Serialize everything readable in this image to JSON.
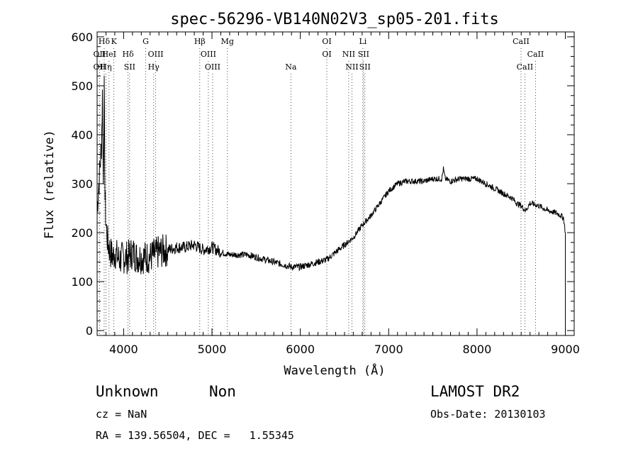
{
  "chart_data": {
    "type": "line",
    "title": "spec-56296-VB140N02V3_sp05-201.fits",
    "xlabel": "Wavelength (Å)",
    "ylabel": "Flux (relative)",
    "xlim": [
      3700,
      9100
    ],
    "ylim": [
      -10,
      610
    ],
    "xticks": [
      4000,
      5000,
      6000,
      7000,
      8000,
      9000
    ],
    "yticks": [
      0,
      100,
      200,
      300,
      400,
      500,
      600
    ],
    "grid": false,
    "legend": "none",
    "series": [
      {
        "x": [
          3700,
          3750,
          3760,
          3770,
          3780,
          3790,
          3800,
          3820,
          3850,
          3880,
          3900,
          3950,
          4000,
          4050,
          4100,
          4150,
          4200,
          4250,
          4300,
          4350,
          4400,
          4500,
          4600,
          4700,
          4800,
          4900,
          5000,
          5100,
          5200,
          5300,
          5400,
          5500,
          5600,
          5700,
          5800,
          5900,
          6000,
          6100,
          6200,
          6300,
          6400,
          6500,
          6600,
          6700,
          6800,
          6900,
          7000,
          7100,
          7200,
          7300,
          7400,
          7500,
          7600,
          7620,
          7640,
          7700,
          7800,
          7900,
          8000,
          8100,
          8200,
          8300,
          8400,
          8450,
          8500,
          8550,
          8600,
          8700,
          8800,
          8900,
          8950,
          8980,
          9000
        ],
        "y": [
          250,
          380,
          480,
          300,
          490,
          270,
          220,
          180,
          160,
          150,
          160,
          145,
          150,
          150,
          160,
          150,
          150,
          150,
          150,
          155,
          160,
          165,
          170,
          170,
          175,
          165,
          170,
          160,
          155,
          155,
          155,
          150,
          145,
          140,
          135,
          130,
          130,
          135,
          140,
          145,
          160,
          175,
          190,
          215,
          235,
          260,
          285,
          300,
          305,
          305,
          305,
          310,
          310,
          330,
          310,
          305,
          310,
          310,
          310,
          300,
          290,
          280,
          270,
          260,
          255,
          245,
          260,
          255,
          245,
          240,
          235,
          230,
          200
        ]
      }
    ],
    "line_markers": [
      {
        "label": "Hδ",
        "row": 0,
        "x": 3780
      },
      {
        "label": "K",
        "row": 0,
        "x": 3890
      },
      {
        "label": "G",
        "row": 0,
        "x": 4250
      },
      {
        "label": "Hβ",
        "row": 0,
        "x": 4862
      },
      {
        "label": "Mg",
        "row": 0,
        "x": 5175
      },
      {
        "label": "OI",
        "row": 0,
        "x": 6300
      },
      {
        "label": "Li",
        "row": 0,
        "x": 6708
      },
      {
        "label": "CaII",
        "row": 0,
        "x": 8498
      },
      {
        "label": "OII",
        "row": 1,
        "x": 3727
      },
      {
        "label": "HeI",
        "row": 1,
        "x": 3835
      },
      {
        "label": "Hδ",
        "row": 1,
        "x": 4050
      },
      {
        "label": "OIII",
        "row": 1,
        "x": 4363
      },
      {
        "label": "OIII",
        "row": 1,
        "x": 4959
      },
      {
        "label": "OI",
        "row": 1,
        "x": 6300
      },
      {
        "label": "NII",
        "row": 1,
        "x": 6548
      },
      {
        "label": "SII",
        "row": 1,
        "x": 6716
      },
      {
        "label": "CaII",
        "row": 1,
        "x": 8662
      },
      {
        "label": "OII",
        "row": 2,
        "x": 3727
      },
      {
        "label": "Hη",
        "row": 2,
        "x": 3800
      },
      {
        "label": "SII",
        "row": 2,
        "x": 4068
      },
      {
        "label": "Hγ",
        "row": 2,
        "x": 4340
      },
      {
        "label": "OIII",
        "row": 2,
        "x": 5007
      },
      {
        "label": "Na",
        "row": 2,
        "x": 5893
      },
      {
        "label": "NII",
        "row": 2,
        "x": 6584
      },
      {
        "label": "SII",
        "row": 2,
        "x": 6731
      },
      {
        "label": "CaII",
        "row": 2,
        "x": 8542
      }
    ]
  },
  "info": {
    "class": "Unknown",
    "subclass": "Non",
    "survey": "LAMOST DR2",
    "cz": "cz = NaN",
    "obs_date": "Obs-Date: 20130103",
    "coords": "RA = 139.56504, DEC =   1.55345"
  }
}
